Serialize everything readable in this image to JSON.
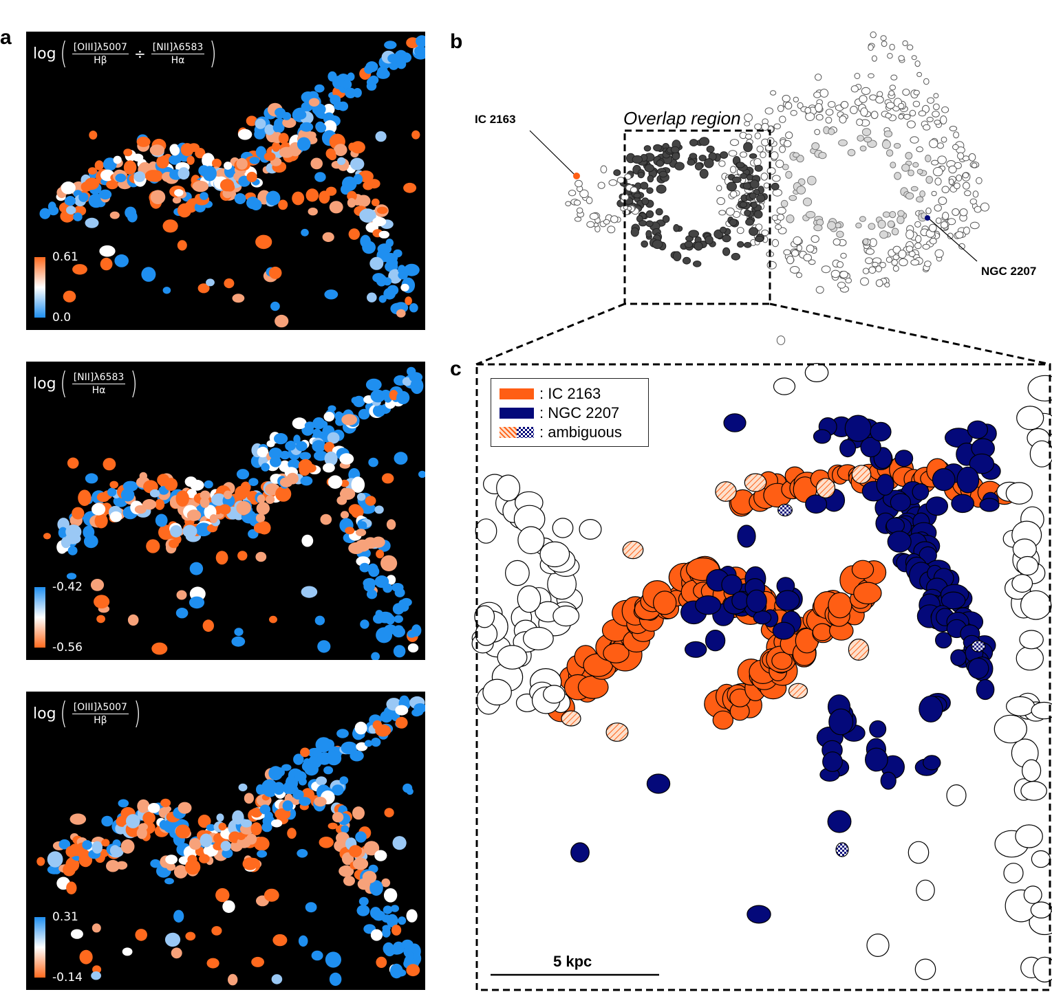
{
  "panels": {
    "a": "a",
    "b": "b",
    "c": "c"
  },
  "maps": [
    {
      "log": "log",
      "num1": "[OIII]λ5007",
      "den1": "Hβ",
      "op": "÷",
      "num2": "[NII]λ6583",
      "den2": "Hα",
      "cbar_top": "0.61",
      "cbar_bottom": "0.0"
    },
    {
      "log": "log",
      "num1": "[NII]λ6583",
      "den1": "Hα",
      "cbar_top": "-0.42",
      "cbar_bottom": "-0.56"
    },
    {
      "log": "log",
      "num1": "[OIII]λ5007",
      "den1": "Hβ",
      "cbar_top": "0.31",
      "cbar_bottom": "-0.14"
    }
  ],
  "panel_b": {
    "label_ic": "IC 2163",
    "label_ngc": "NGC 2207",
    "overlap": "Overlap region"
  },
  "panel_c": {
    "legend": [
      {
        "label": ": IC 2163",
        "color": "#ff5e14"
      },
      {
        "label": ": NGC 2207",
        "color": "#04097a"
      },
      {
        "label": ": ambiguous",
        "color": "hatched"
      }
    ],
    "scale_bar": "5 kpc"
  },
  "colors": {
    "ic2163": "#ff5e14",
    "ngc2207": "#04097a",
    "high": "#ff6a1e",
    "mid": "#ffffff",
    "low": "#1f8ff0",
    "background_map": "#000000"
  }
}
